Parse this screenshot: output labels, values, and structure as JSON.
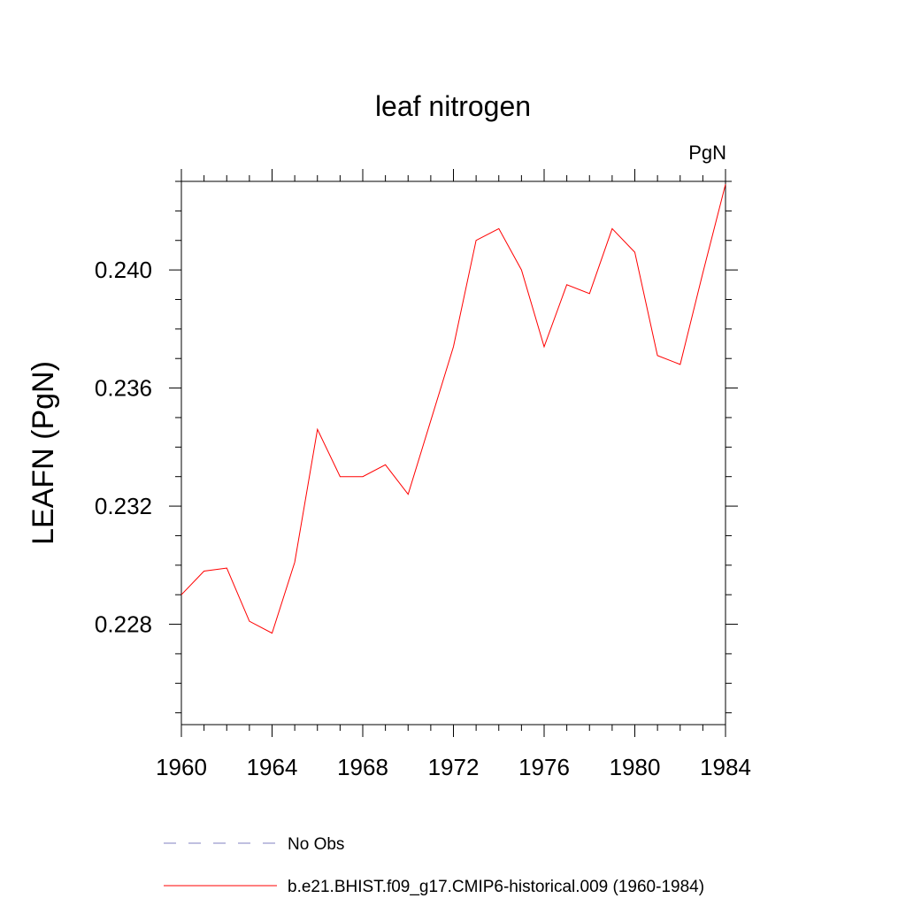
{
  "chart_data": {
    "type": "line",
    "title": "leaf nitrogen",
    "units_label": "PgN",
    "ylabel": "LEAFN  (PgN)",
    "xlabel": "",
    "xlim": [
      1960,
      1984
    ],
    "ylim": [
      0.2246,
      0.243
    ],
    "x_ticks": [
      1960,
      1964,
      1968,
      1972,
      1976,
      1980,
      1984
    ],
    "x_tick_labels": [
      "1960",
      "1964",
      "1968",
      "1972",
      "1976",
      "1980",
      "1984"
    ],
    "y_ticks": [
      0.228,
      0.232,
      0.236,
      0.24
    ],
    "y_tick_labels": [
      "0.228",
      "0.232",
      "0.236",
      "0.240"
    ],
    "grid": false,
    "legend_position": "bottom",
    "series": [
      {
        "name": "No Obs",
        "color": "#8080c0",
        "dashed": true,
        "x": [],
        "y": []
      },
      {
        "name": "b.e21.BHIST.f09_g17.CMIP6-historical.009 (1960-1984)",
        "color": "#ff0000",
        "dashed": false,
        "x": [
          1960,
          1961,
          1962,
          1963,
          1964,
          1965,
          1966,
          1967,
          1968,
          1969,
          1970,
          1971,
          1972,
          1973,
          1974,
          1975,
          1976,
          1977,
          1978,
          1979,
          1980,
          1981,
          1982,
          1983,
          1984
        ],
        "y": [
          0.229,
          0.2298,
          0.2299,
          0.2281,
          0.2277,
          0.2301,
          0.2346,
          0.233,
          0.233,
          0.2334,
          0.2324,
          0.2349,
          0.2374,
          0.241,
          0.2414,
          0.24,
          0.2374,
          0.2395,
          0.2392,
          0.2414,
          0.2406,
          0.2371,
          0.2368,
          0.2399,
          0.2429
        ]
      }
    ]
  }
}
